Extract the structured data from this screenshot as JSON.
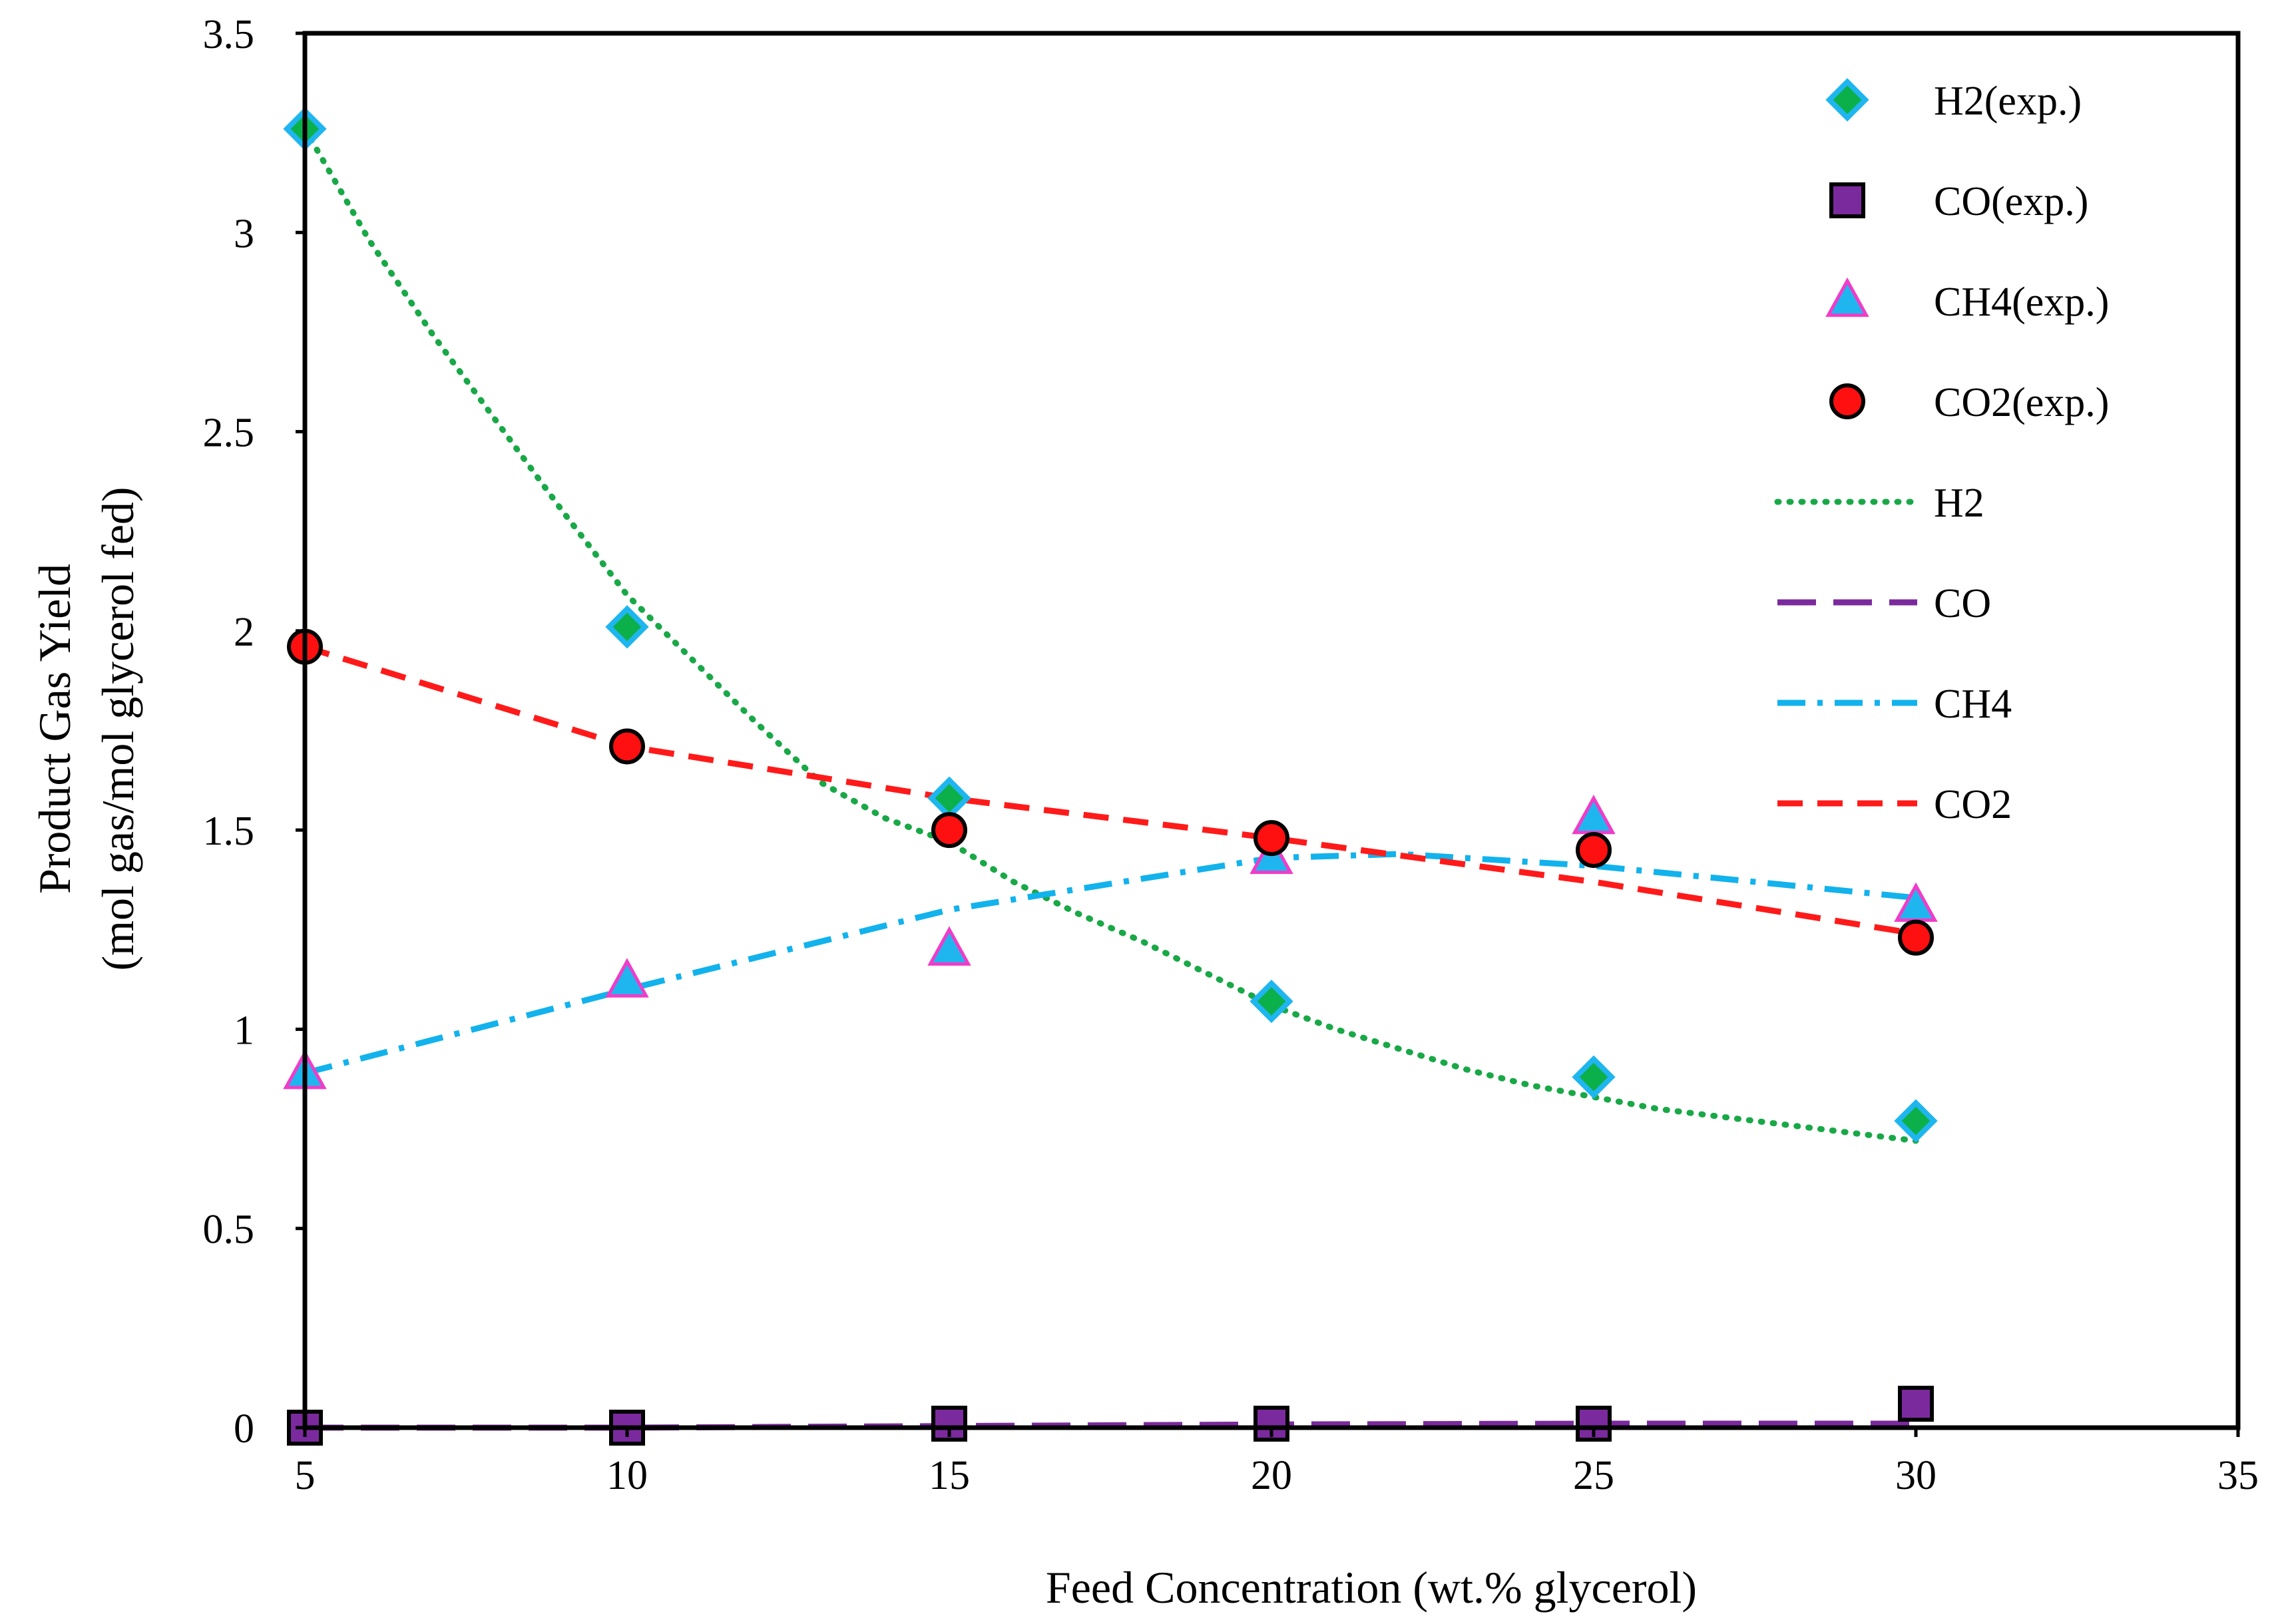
{
  "chart_data": {
    "type": "line",
    "title": "",
    "xlabel": "Feed Concentration (wt.% glycerol)",
    "ylabel_line1": "Product Gas Yield",
    "ylabel_line2": "(mol gas/mol glycerol fed)",
    "xlim": [
      5,
      35
    ],
    "ylim": [
      0,
      3.5
    ],
    "xticks": [
      5,
      10,
      15,
      20,
      25,
      30,
      35
    ],
    "xtick_labels": [
      "5",
      "10",
      "15",
      "20",
      "25",
      "30",
      "35"
    ],
    "yticks": [
      0,
      0.5,
      1,
      1.5,
      2,
      2.5,
      3,
      3.5
    ],
    "ytick_labels": [
      "0",
      "0.5",
      "1",
      "1.5",
      "2",
      "2.5",
      "3",
      "3.5"
    ],
    "grid": false,
    "legend_position": "top-right",
    "experimental": [
      {
        "name": "H2(exp.)",
        "marker": "diamond",
        "fill": "#0BB04B",
        "stroke": "#1FB6F0",
        "x": [
          5,
          10,
          15,
          20,
          25,
          30
        ],
        "y": [
          3.26,
          2.01,
          1.58,
          1.07,
          0.88,
          0.77
        ]
      },
      {
        "name": "CO(exp.)",
        "marker": "square",
        "fill": "#7B2A9E",
        "stroke": "#000000",
        "x": [
          5,
          10,
          15,
          20,
          25,
          30
        ],
        "y": [
          0.0,
          0.0,
          0.01,
          0.01,
          0.01,
          0.06
        ]
      },
      {
        "name": "CH4(exp.)",
        "marker": "triangle",
        "fill": "#1FB6F0",
        "stroke": "#F03CC8",
        "x": [
          5,
          10,
          15,
          20,
          25,
          30
        ],
        "y": [
          0.89,
          1.12,
          1.2,
          1.43,
          1.53,
          1.31
        ]
      },
      {
        "name": "CO2(exp.)",
        "marker": "circle",
        "fill": "#FF1010",
        "stroke": "#000000",
        "x": [
          5,
          10,
          15,
          20,
          25,
          30
        ],
        "y": [
          1.96,
          1.71,
          1.5,
          1.48,
          1.45,
          1.23
        ]
      }
    ],
    "model": [
      {
        "name": "H2",
        "style": "dotted",
        "color": "#19A847",
        "x": [
          5,
          6,
          7,
          8,
          9,
          10,
          11,
          12,
          13,
          14,
          15,
          16,
          17,
          18,
          19,
          20,
          21,
          22,
          23,
          24,
          25,
          26,
          27,
          28,
          29,
          30
        ],
        "y": [
          3.26,
          2.98,
          2.74,
          2.52,
          2.3,
          2.09,
          1.93,
          1.77,
          1.62,
          1.53,
          1.47,
          1.37,
          1.29,
          1.22,
          1.14,
          1.06,
          1.0,
          0.95,
          0.9,
          0.86,
          0.83,
          0.8,
          0.78,
          0.76,
          0.74,
          0.72
        ]
      },
      {
        "name": "CO",
        "style": "longdash",
        "color": "#7B2A9E",
        "x": [
          5,
          10,
          15,
          20,
          25,
          30
        ],
        "y": [
          0.0,
          0.0,
          0.004,
          0.008,
          0.01,
          0.01
        ]
      },
      {
        "name": "CH4",
        "style": "dashdot",
        "color": "#12B2EC",
        "x": [
          5,
          10,
          15,
          20,
          22,
          25,
          30
        ],
        "y": [
          0.89,
          1.1,
          1.3,
          1.43,
          1.44,
          1.41,
          1.33
        ]
      },
      {
        "name": "CO2",
        "style": "dashed",
        "color": "#FF1A1A",
        "x": [
          5,
          10,
          15,
          20,
          25,
          30
        ],
        "y": [
          1.96,
          1.71,
          1.58,
          1.48,
          1.37,
          1.24
        ]
      }
    ]
  }
}
